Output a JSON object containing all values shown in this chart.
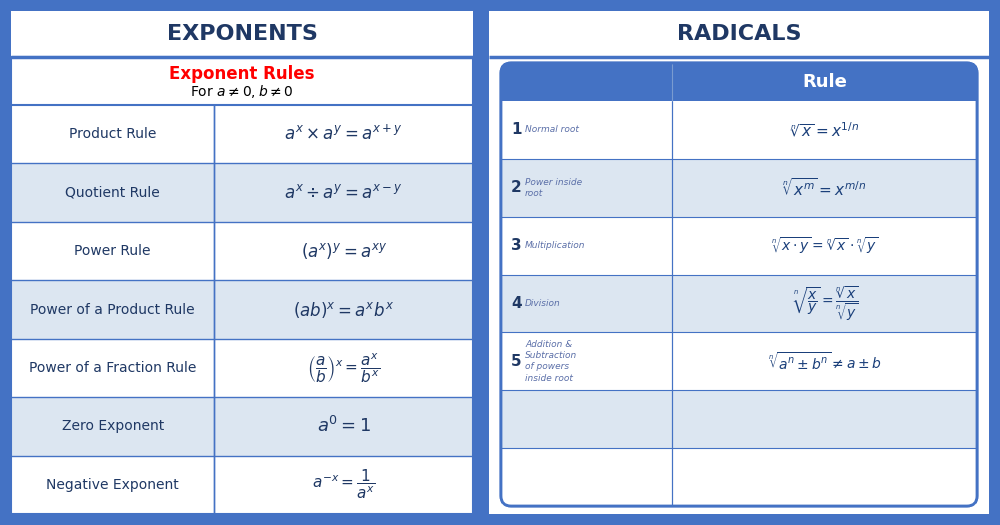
{
  "left_title": "EXPONENTS",
  "right_title": "RADICALS",
  "left_subtitle_red": "Exponent Rules",
  "outer_bg": "#4472c4",
  "inner_bg": "#dce6f1",
  "row_alt1": "white",
  "row_alt2": "#dce6f1",
  "left_rows": [
    {
      "name": "Product Rule",
      "formula": "$a^x \\times a^y = a^{x+y}$",
      "fs": 12
    },
    {
      "name": "Quotient Rule",
      "formula": "$a^x \\div a^y = a^{x-y}$",
      "fs": 12
    },
    {
      "name": "Power Rule",
      "formula": "$(a^x)^y = a^{xy}$",
      "fs": 12
    },
    {
      "name": "Power of a Product Rule",
      "formula": "$(ab)^x = a^x b^x$",
      "fs": 12
    },
    {
      "name": "Power of a Fraction Rule",
      "formula": "$\\left(\\dfrac{a}{b}\\right)^x = \\dfrac{a^x}{b^x}$",
      "fs": 11
    },
    {
      "name": "Zero Exponent",
      "formula": "$a^0 = 1$",
      "fs": 13
    },
    {
      "name": "Negative Exponent",
      "formula": "$a^{-x} = \\dfrac{1}{a^x}$",
      "fs": 11
    }
  ],
  "right_rows": [
    {
      "num": "1",
      "name": "Normal root",
      "formula": "$\\sqrt[n]{x} = x^{1/n}$",
      "fs": 11
    },
    {
      "num": "2",
      "name": "Power inside\nroot",
      "formula": "$\\sqrt[n]{x^m} = x^{m/n}$",
      "fs": 11
    },
    {
      "num": "3",
      "name": "Multiplication",
      "formula": "$\\sqrt[n]{x \\cdot y} = \\sqrt[n]{x} \\cdot \\sqrt[n]{y}$",
      "fs": 10
    },
    {
      "num": "4",
      "name": "Division",
      "formula": "$\\sqrt[n]{\\dfrac{x}{y}} = \\dfrac{\\sqrt[n]{x}}{\\sqrt[n]{y}}$",
      "fs": 10
    },
    {
      "num": "5",
      "name": "Addition &\nSubtraction\nof powers\ninside root",
      "formula": "$\\sqrt[n]{a^n \\pm b^n} \\neq a \\pm b$",
      "fs": 10
    },
    {
      "num": "",
      "name": "",
      "formula": "",
      "fs": 10
    },
    {
      "num": "",
      "name": "",
      "formula": "",
      "fs": 10
    }
  ]
}
